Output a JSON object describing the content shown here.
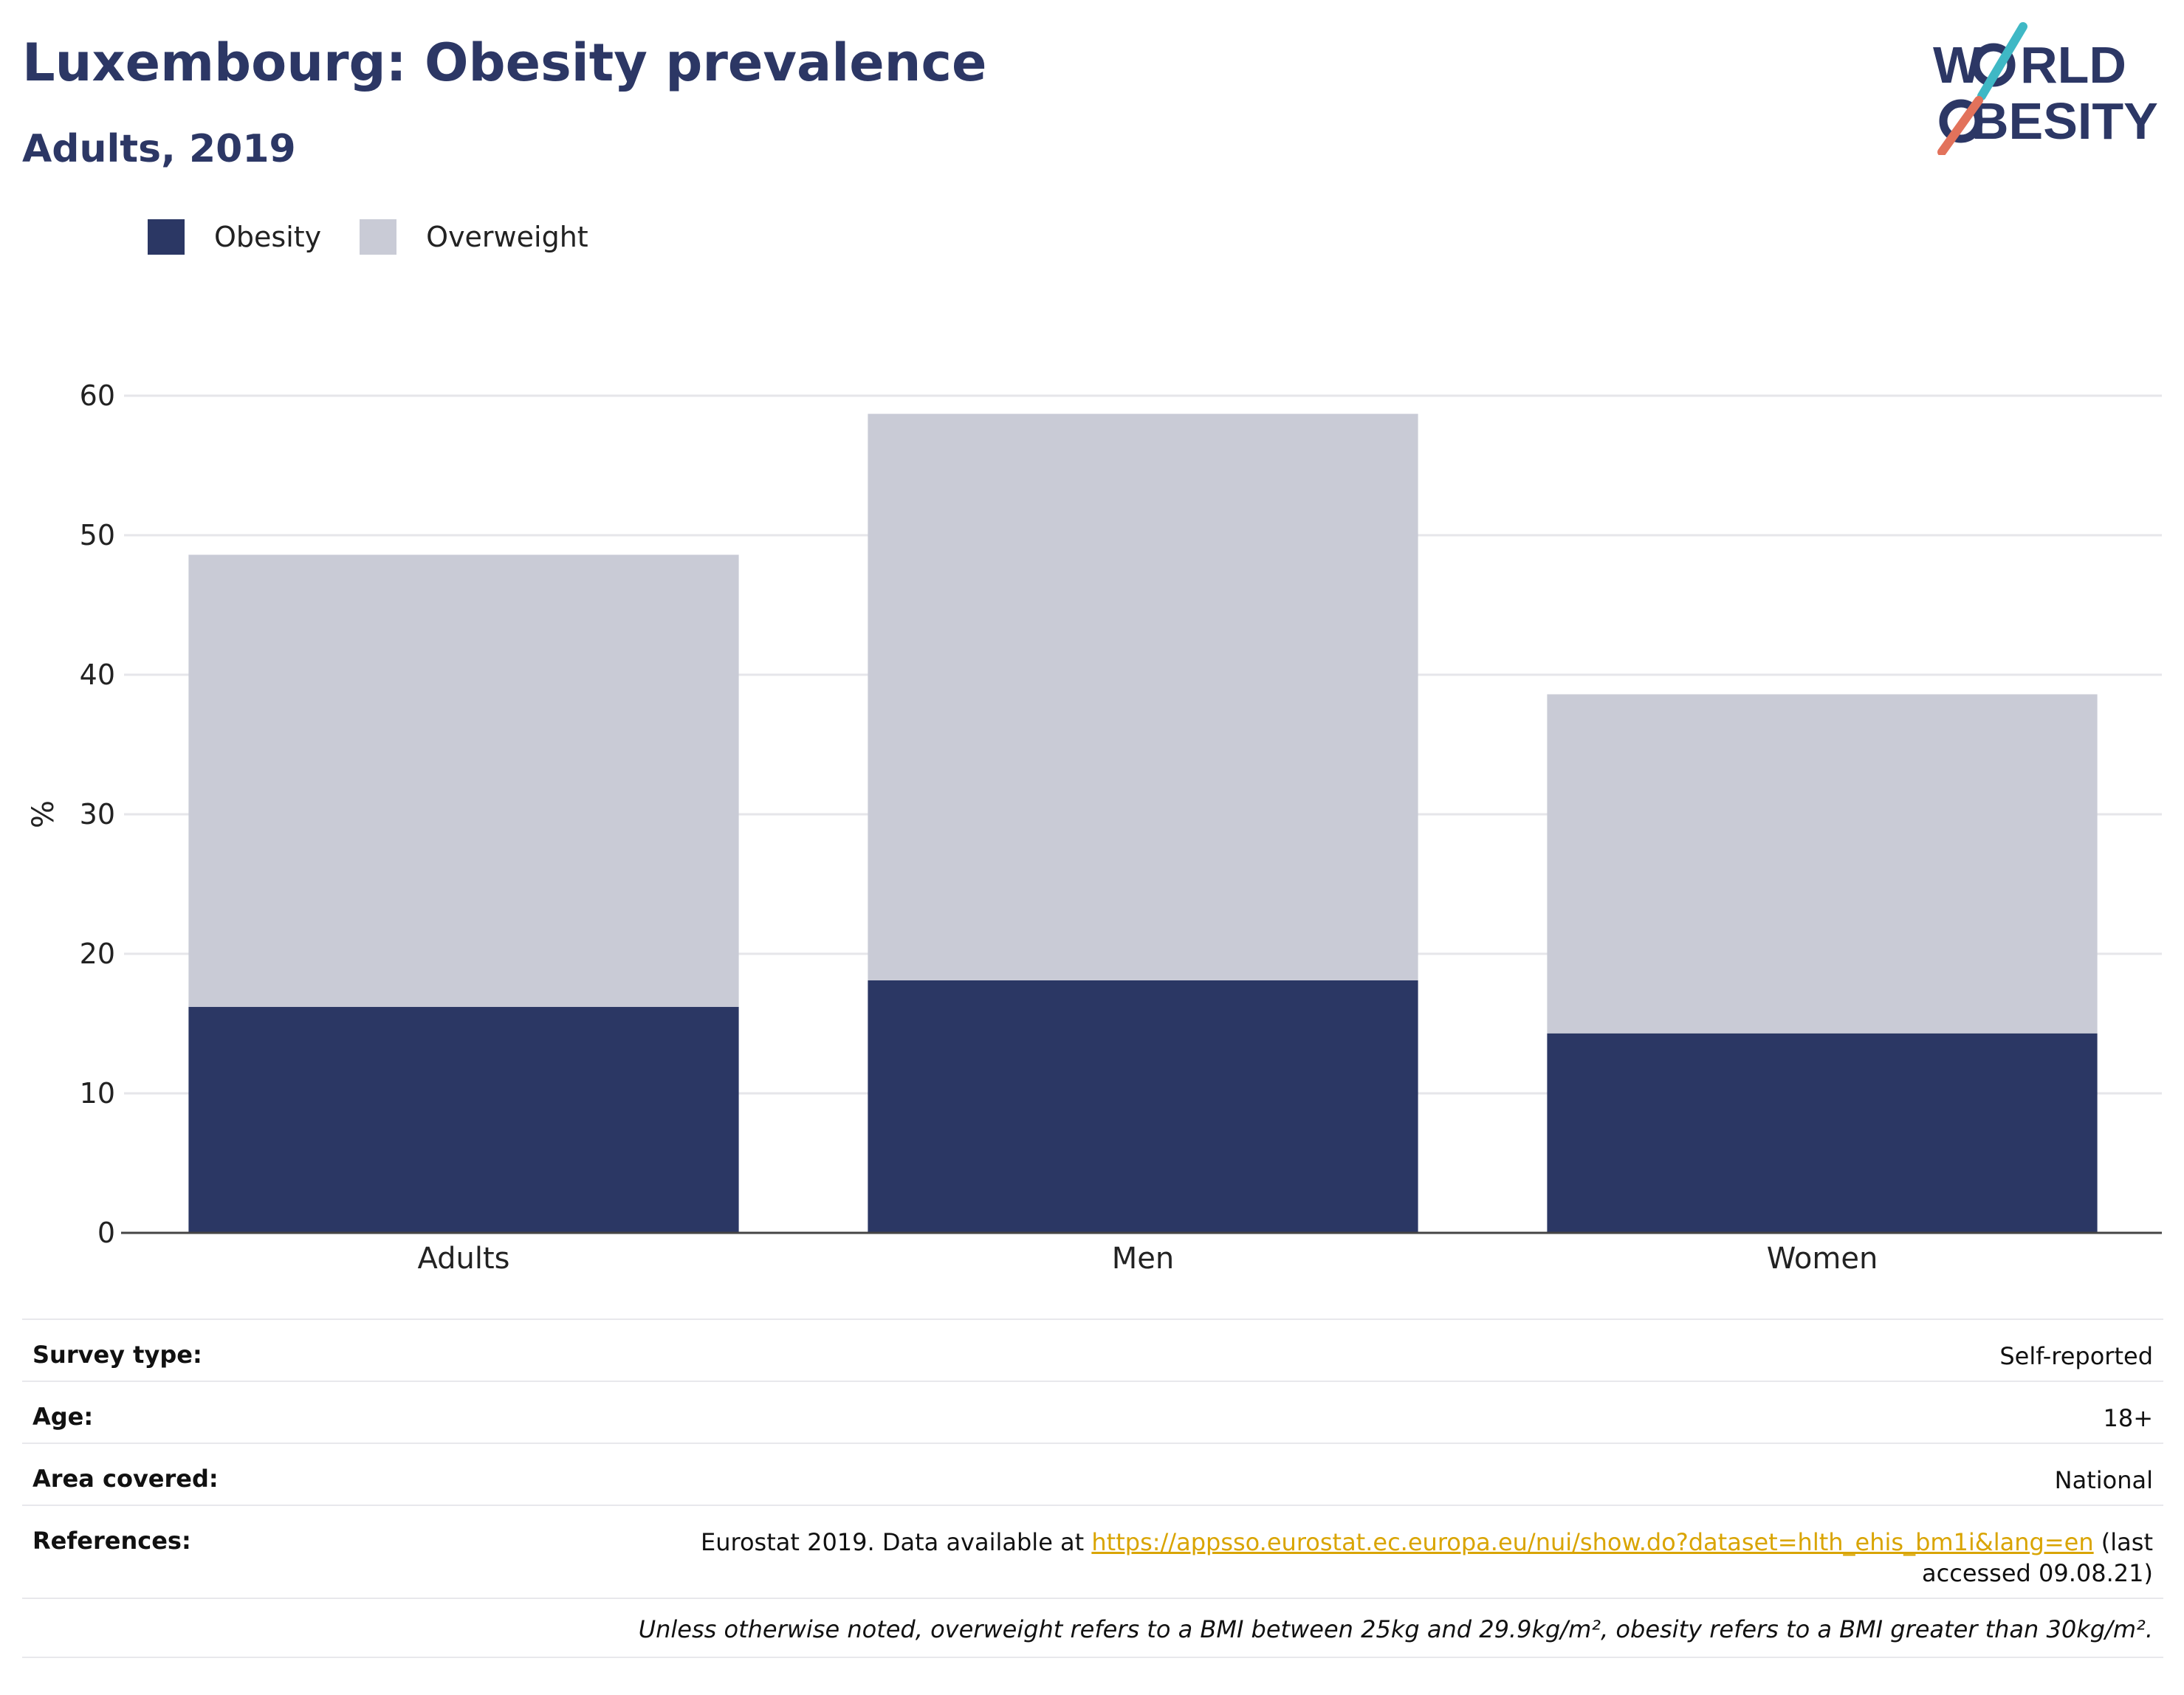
{
  "header": {
    "title": "Luxembourg: Obesity prevalence",
    "subtitle": "Adults, 2019"
  },
  "logo": {
    "line1_a": "W",
    "line1_b": "RLD",
    "line2_a": "",
    "line2_b": "BESITY",
    "slash_colors": [
      "#3fb8c5",
      "#e2725b"
    ],
    "text_color": "#2c3765"
  },
  "chart_data": {
    "type": "bar",
    "stacked": true,
    "categories": [
      "Adults",
      "Men",
      "Women"
    ],
    "series": [
      {
        "name": "Obesity",
        "values": [
          16.2,
          18.1,
          14.3
        ],
        "color": "#2b3764"
      },
      {
        "name": "Overweight",
        "values": [
          32.4,
          40.6,
          24.3
        ],
        "color": "#c9cbd6"
      }
    ],
    "ylabel": "%",
    "ylim": [
      0,
      60
    ],
    "yticks": [
      0,
      10,
      20,
      30,
      40,
      50,
      60
    ],
    "grid": true,
    "legend": "top-left"
  },
  "info": {
    "survey_type_label": "Survey type:",
    "survey_type_value": "Self-reported",
    "age_label": "Age:",
    "age_value": "18+",
    "area_label": "Area covered:",
    "area_value": "National",
    "references_label": "References:",
    "references_prefix": "Eurostat 2019. Data available at ",
    "references_link": "https://appsso.eurostat.ec.europa.eu/nui/show.do?dataset=hlth_ehis_bm1i&lang=en",
    "references_suffix": " (last accessed 09.08.21)",
    "note": "Unless otherwise noted, overweight refers to a BMI between 25kg and 29.9kg/m², obesity refers to a BMI greater than 30kg/m²."
  }
}
